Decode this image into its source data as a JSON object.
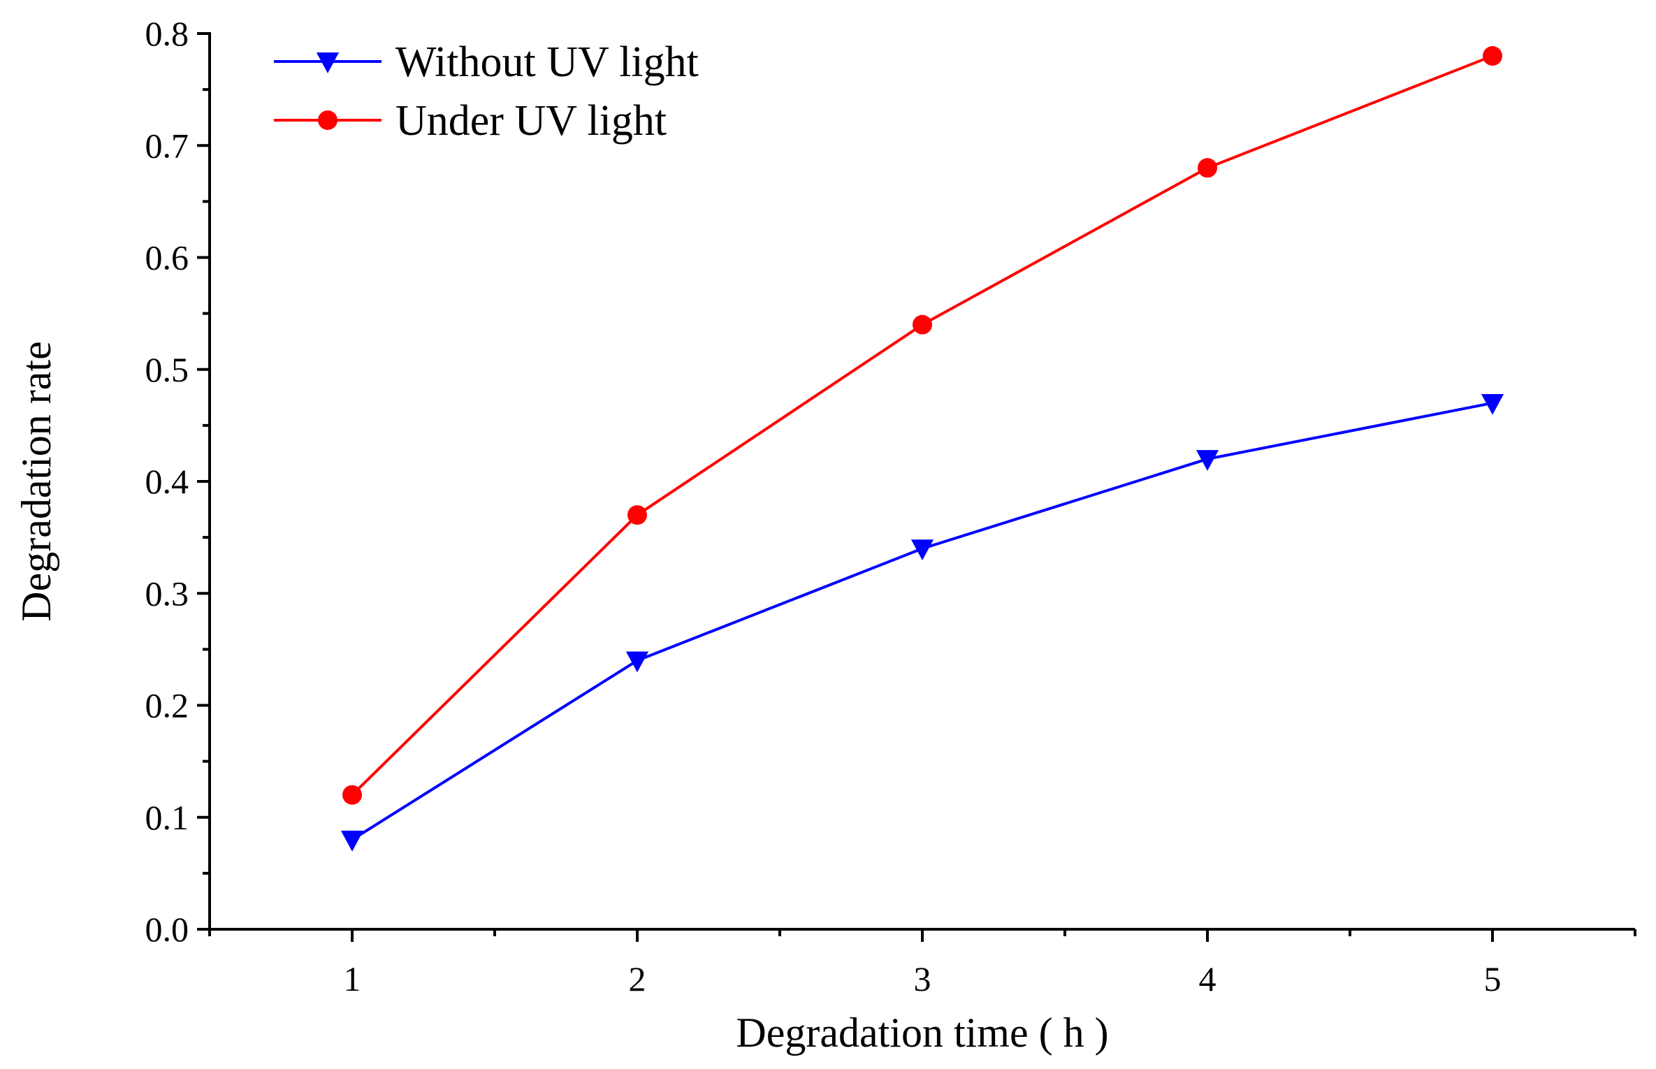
{
  "chart_data": {
    "type": "line",
    "title": "",
    "xlabel": "Degradation time ( h )",
    "ylabel": "Degradation rate",
    "x": [
      1,
      2,
      3,
      4,
      5
    ],
    "xlim": [
      0.5,
      5.5
    ],
    "ylim": [
      0.0,
      0.8
    ],
    "x_ticks": [
      1,
      2,
      3,
      4,
      5
    ],
    "x_tick_labels": [
      "1",
      "2",
      "3",
      "4",
      "5"
    ],
    "y_ticks": [
      0.0,
      0.1,
      0.2,
      0.3,
      0.4,
      0.5,
      0.6,
      0.7,
      0.8
    ],
    "y_tick_labels": [
      "0.0",
      "0.1",
      "0.2",
      "0.3",
      "0.4",
      "0.5",
      "0.6",
      "0.7",
      "0.8"
    ],
    "grid": false,
    "legend_position": "top-left",
    "series": [
      {
        "name": "Without UV light",
        "values": [
          0.08,
          0.24,
          0.34,
          0.42,
          0.47
        ],
        "color": "#0000ff",
        "marker": "triangle-down"
      },
      {
        "name": "Under UV light",
        "values": [
          0.12,
          0.37,
          0.54,
          0.68,
          0.78
        ],
        "color": "#ff0000",
        "marker": "circle"
      }
    ]
  }
}
